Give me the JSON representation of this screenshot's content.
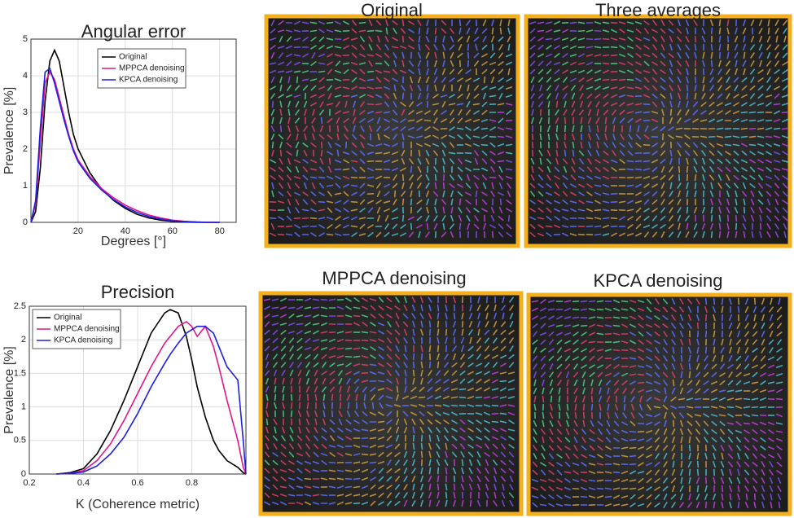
{
  "chart_data": [
    {
      "type": "line",
      "title": "Angular error",
      "xlabel": "Degrees [°]",
      "ylabel": "Prevalence [%]",
      "x": [
        0,
        2,
        4,
        6,
        8,
        10,
        12,
        14,
        16,
        18,
        20,
        25,
        30,
        35,
        40,
        45,
        50,
        55,
        60,
        65,
        70,
        75,
        80
      ],
      "series": [
        {
          "name": "Original",
          "color": "#000000",
          "values": [
            0,
            0.3,
            1.5,
            3.3,
            4.4,
            4.7,
            4.4,
            3.7,
            3.0,
            2.4,
            2.0,
            1.35,
            0.9,
            0.6,
            0.38,
            0.22,
            0.12,
            0.06,
            0.03,
            0.01,
            0,
            0,
            0
          ]
        },
        {
          "name": "MPPCA denoising",
          "color": "#e0168c",
          "values": [
            0,
            0.5,
            2.2,
            3.8,
            4.1,
            3.9,
            3.4,
            2.9,
            2.4,
            2.0,
            1.7,
            1.25,
            0.92,
            0.67,
            0.47,
            0.32,
            0.2,
            0.12,
            0.06,
            0.03,
            0.01,
            0,
            0
          ]
        },
        {
          "name": "KPCA denoising",
          "color": "#1f1fe0",
          "values": [
            0,
            0.6,
            2.6,
            4.1,
            4.2,
            3.8,
            3.3,
            2.8,
            2.35,
            1.95,
            1.65,
            1.2,
            0.88,
            0.62,
            0.42,
            0.27,
            0.16,
            0.09,
            0.04,
            0.02,
            0.01,
            0,
            0
          ]
        }
      ],
      "xlim": [
        0,
        87
      ],
      "xticks": [
        20,
        40,
        60,
        80
      ],
      "ylim": [
        0,
        5
      ],
      "yticks": [
        0,
        1,
        2,
        3,
        4,
        5
      ],
      "grid": true,
      "legend": "upper center"
    },
    {
      "type": "line",
      "title": "Precision",
      "xlabel": "K (Coherence metric)",
      "ylabel": "Prevalence [%]",
      "x": [
        0.3,
        0.35,
        0.4,
        0.45,
        0.5,
        0.55,
        0.6,
        0.65,
        0.7,
        0.72,
        0.75,
        0.78,
        0.8,
        0.82,
        0.85,
        0.88,
        0.9,
        0.93,
        0.95,
        0.97,
        0.99,
        1.0
      ],
      "series": [
        {
          "name": "Original",
          "color": "#000000",
          "values": [
            0,
            0.02,
            0.08,
            0.3,
            0.65,
            1.1,
            1.6,
            2.1,
            2.4,
            2.45,
            2.4,
            2.05,
            1.7,
            1.3,
            0.85,
            0.5,
            0.35,
            0.2,
            0.15,
            0.1,
            0.02,
            0
          ]
        },
        {
          "name": "MPPCA denoising",
          "color": "#e0168c",
          "values": [
            0,
            0.01,
            0.05,
            0.2,
            0.45,
            0.8,
            1.2,
            1.6,
            1.95,
            2.05,
            2.2,
            2.27,
            2.2,
            2.05,
            2.2,
            1.9,
            1.6,
            1.1,
            0.8,
            0.5,
            0.1,
            0
          ]
        },
        {
          "name": "KPCA denoising",
          "color": "#1f1fe0",
          "values": [
            0,
            0.01,
            0.03,
            0.12,
            0.3,
            0.55,
            0.9,
            1.3,
            1.65,
            1.78,
            1.95,
            2.1,
            2.15,
            2.2,
            2.2,
            2.1,
            1.9,
            1.6,
            1.5,
            1.4,
            0.5,
            0
          ]
        }
      ],
      "xlim": [
        0.2,
        1.0
      ],
      "xticks": [
        0.2,
        0.4,
        0.6,
        0.8
      ],
      "ylim": [
        0,
        2.5
      ],
      "yticks": [
        0,
        0.5,
        1,
        1.5,
        2,
        2.5
      ],
      "grid": true,
      "legend": "upper left"
    }
  ],
  "images": [
    {
      "title": "Original"
    },
    {
      "title": "Three averages"
    },
    {
      "title": "MPPCA denoising"
    },
    {
      "title": "KPCA denoising"
    }
  ]
}
